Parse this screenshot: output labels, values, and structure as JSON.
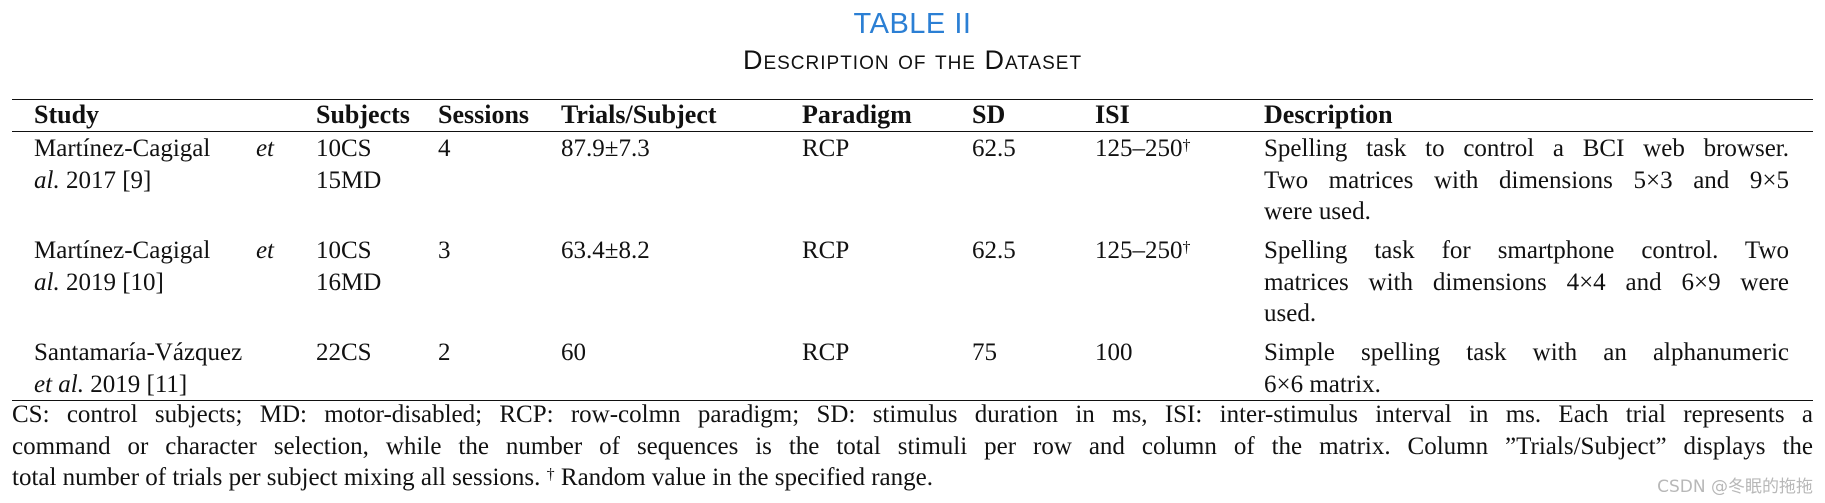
{
  "table": {
    "label": "TABLE II",
    "caption": "Description of the Dataset",
    "headers": {
      "study": "Study",
      "subjects": "Subjects",
      "sessions": "Sessions",
      "trials": "Trials/Subject",
      "paradigm": "Paradigm",
      "sd": "SD",
      "isi": "ISI",
      "description": "Description"
    },
    "rows": [
      {
        "study_author_a": "Martínez-Cagigal",
        "study_etal_a": "et",
        "study_etal_b": "al.",
        "study_ref": " 2017 [9]",
        "subjects_1": "10CS",
        "subjects_2": "15MD",
        "sessions": "4",
        "trials": "87.9±7.3",
        "paradigm": "RCP",
        "sd": "62.5",
        "isi": "125–250",
        "isi_mark": "†",
        "desc_1": "Spelling task to control a BCI web browser.",
        "desc_2": "Two matrices with dimensions 5×3 and 9×5",
        "desc_3": "were used."
      },
      {
        "study_author_a": "Martínez-Cagigal",
        "study_etal_a": "et",
        "study_etal_b": "al.",
        "study_ref": " 2019 [10]",
        "subjects_1": "10CS",
        "subjects_2": "16MD",
        "sessions": "3",
        "trials": "63.4±8.2",
        "paradigm": "RCP",
        "sd": "62.5",
        "isi": "125–250",
        "isi_mark": "†",
        "desc_1": "Spelling task for smartphone control. Two",
        "desc_2": "matrices with dimensions 4×4 and 6×9 were",
        "desc_3": "used."
      },
      {
        "study_author_a": "Santamaría-Vázquez",
        "study_etal_b": "et al.",
        "study_ref": " 2019 [11]",
        "subjects_1": "22CS",
        "sessions": "2",
        "trials": "60",
        "paradigm": "RCP",
        "sd": "75",
        "isi": "100",
        "desc_1": "Simple spelling task with an alphanumeric",
        "desc_2": "6×6 matrix."
      }
    ],
    "footnote": {
      "line1": "CS: control subjects; MD: motor-disabled; RCP: row-colmn paradigm; SD: stimulus duration in ms, ISI: inter-stimulus interval in ms. Each trial represents a",
      "line2": "command or character selection, while the number of sequences is the total stimuli per row and column of the matrix. Column ”Trials/Subject” displays the",
      "line3": "total number of trials per subject mixing all sessions.",
      "mark": "†",
      "line3_end": " Random value in the specified range."
    }
  },
  "watermark": "CSDN @冬眠的拖拖",
  "colors": {
    "label": "#2b7fd4",
    "text": "#111111",
    "watermark": "#b8b8b8"
  }
}
